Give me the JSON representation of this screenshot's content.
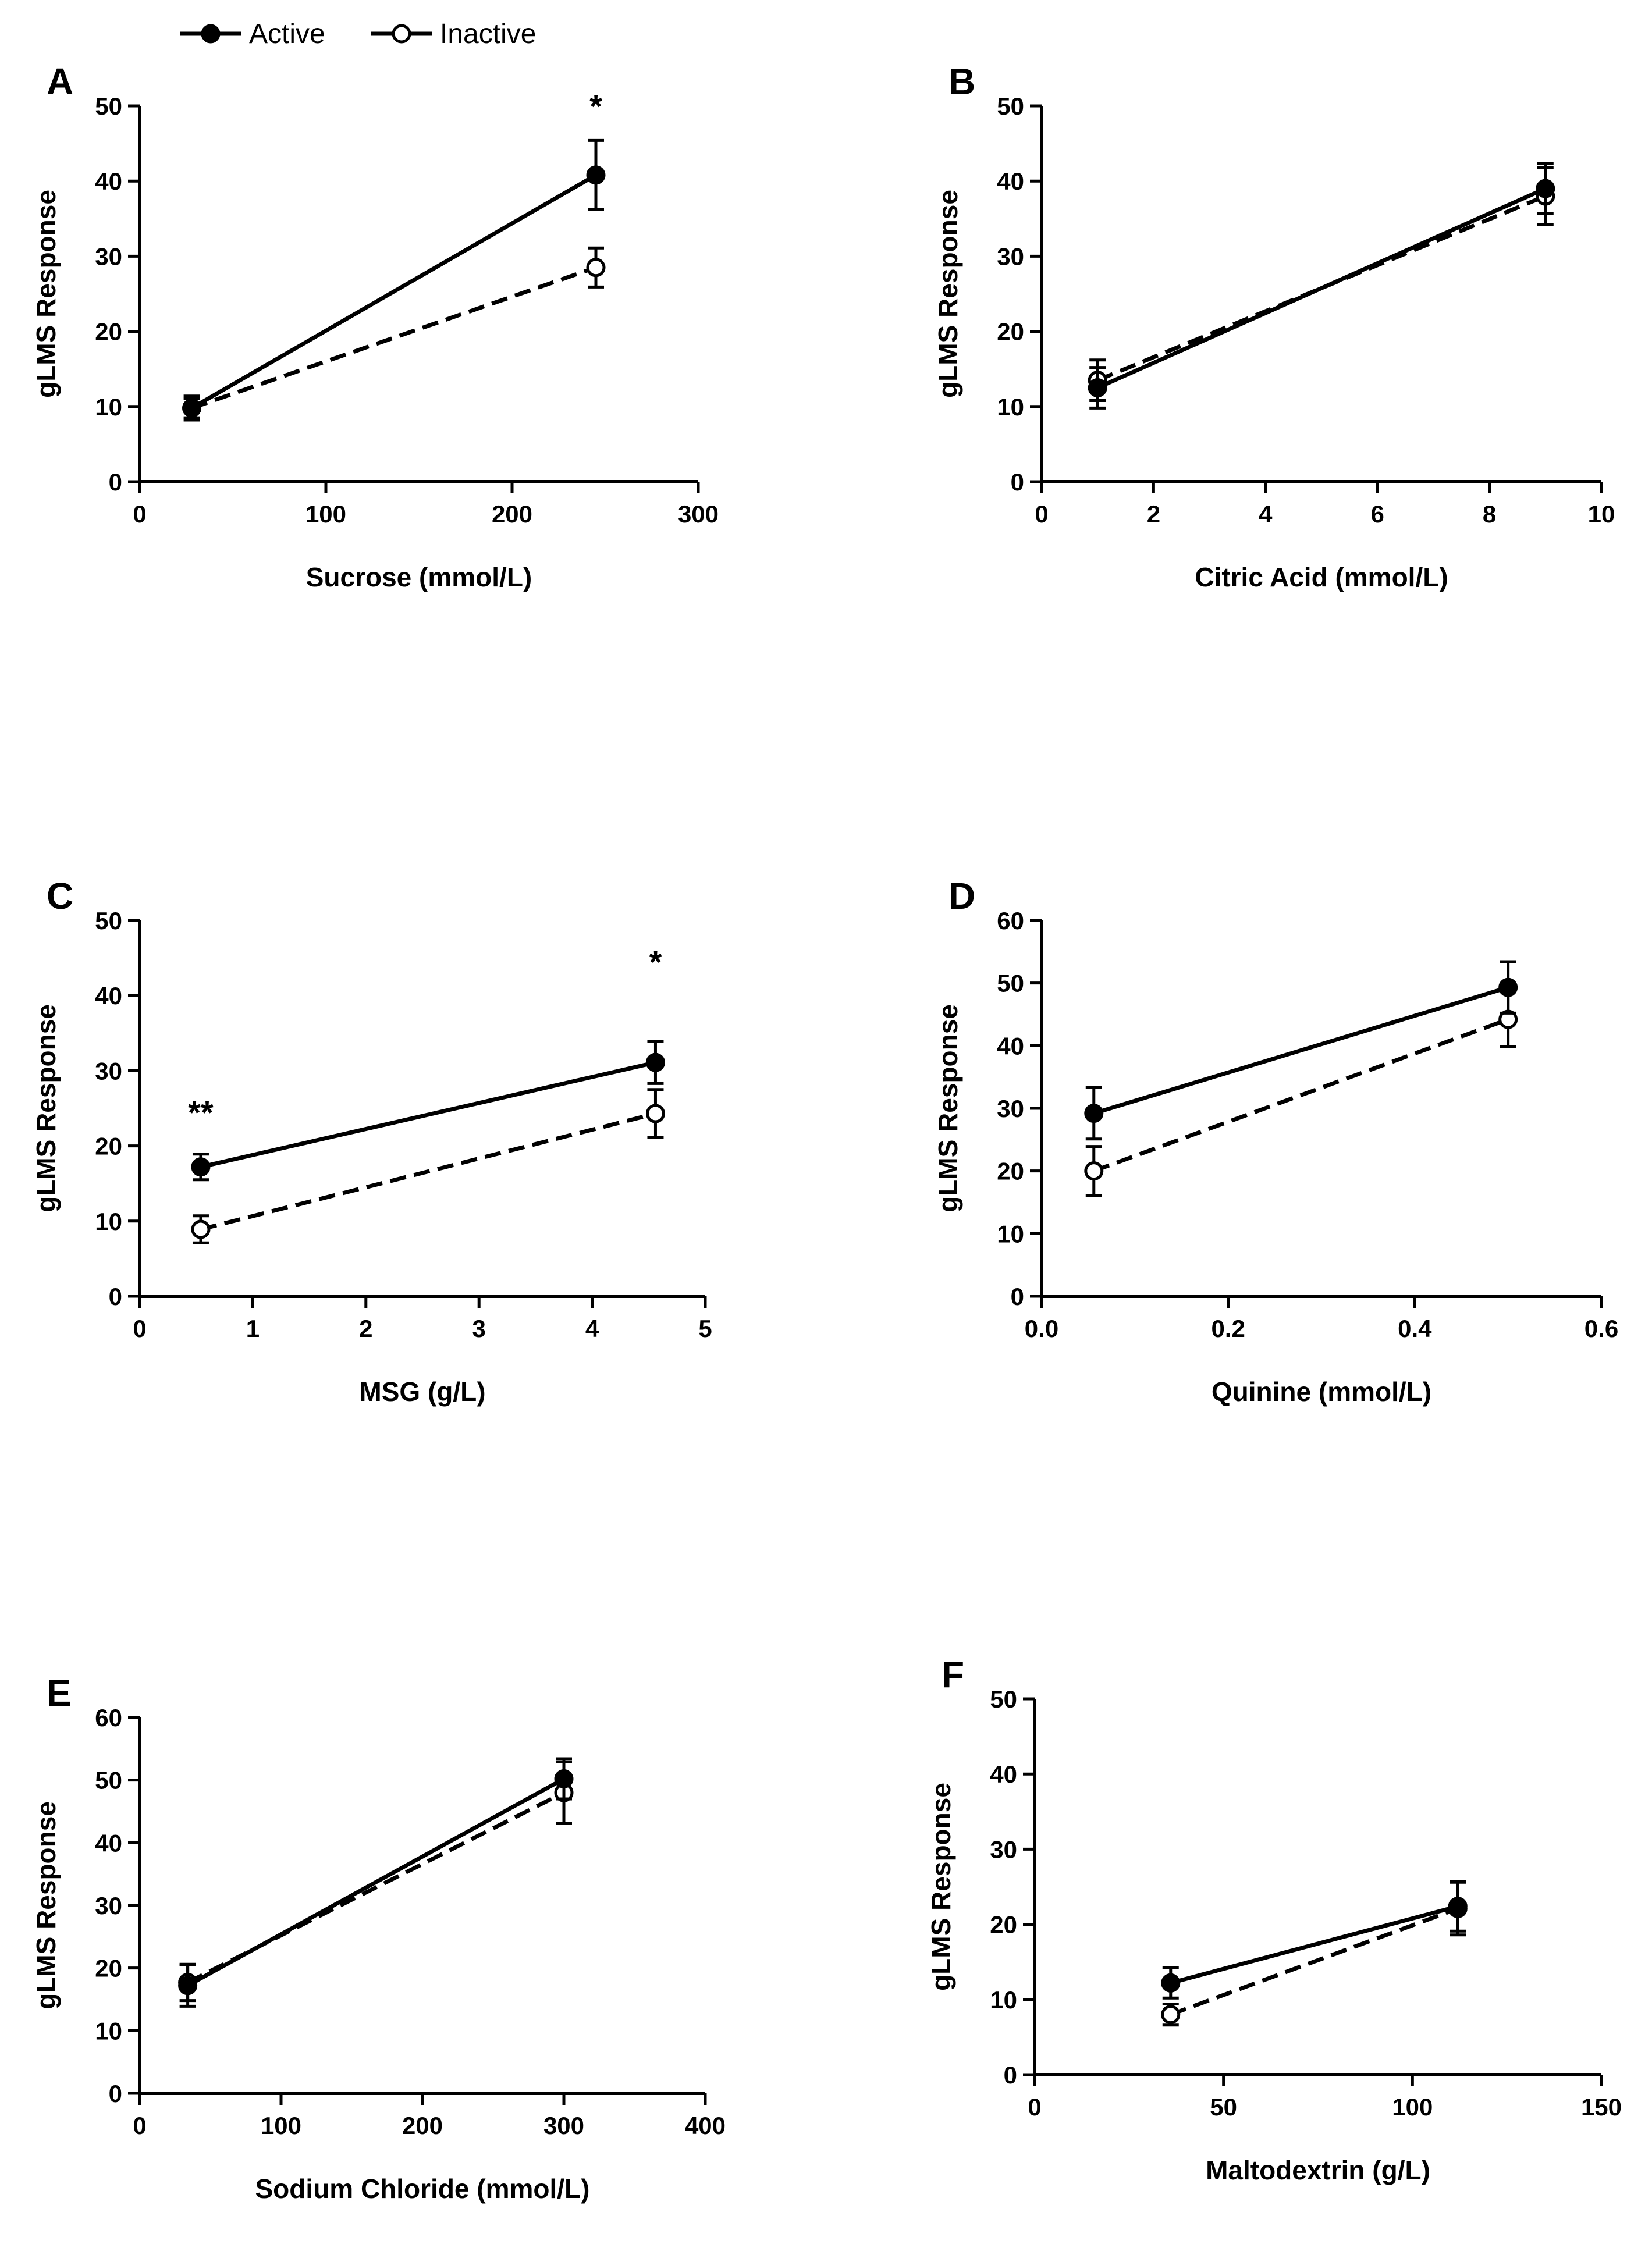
{
  "legend": {
    "items": [
      {
        "name": "Active",
        "marker": "filled-circle",
        "line": "solid"
      },
      {
        "name": "Inactive",
        "marker": "open-circle",
        "line": "dashed"
      }
    ]
  },
  "colors": {
    "ink": "#000000",
    "background": "#ffffff",
    "open_marker_fill": "#ffffff"
  },
  "chart_data": [
    {
      "panel": "A",
      "type": "line",
      "xlabel": "Sucrose (mmol/L)",
      "ylabel": "gLMS Response",
      "xlim": [
        0,
        300
      ],
      "ylim": [
        0,
        50
      ],
      "xticks": [
        0,
        100,
        200,
        300
      ],
      "yticks": [
        0,
        10,
        20,
        30,
        40,
        50
      ],
      "xtick_labels": [
        "0",
        "100",
        "200",
        "300"
      ],
      "ytick_labels": [
        "0",
        "10",
        "20",
        "30",
        "40",
        "50"
      ],
      "series": [
        {
          "name": "Active",
          "x": [
            28,
            245
          ],
          "y": [
            9.8,
            40.8
          ],
          "err": [
            1.6,
            4.6
          ]
        },
        {
          "name": "Inactive",
          "x": [
            28,
            245
          ],
          "y": [
            9.8,
            28.5
          ],
          "err": [
            1.3,
            2.6
          ]
        }
      ],
      "annotations": [
        {
          "text": "*",
          "x": 245,
          "y": 50
        }
      ]
    },
    {
      "panel": "B",
      "type": "line",
      "xlabel": "Citric Acid (mmol/L)",
      "ylabel": "gLMS Response",
      "xlim": [
        0,
        10
      ],
      "ylim": [
        0,
        50
      ],
      "xticks": [
        0,
        2,
        4,
        6,
        8,
        10
      ],
      "yticks": [
        0,
        10,
        20,
        30,
        40,
        50
      ],
      "xtick_labels": [
        "0",
        "2",
        "4",
        "6",
        "8",
        "10"
      ],
      "ytick_labels": [
        "0",
        "10",
        "20",
        "30",
        "40",
        "50"
      ],
      "series": [
        {
          "name": "Active",
          "x": [
            1,
            9
          ],
          "y": [
            12.5,
            39.0
          ],
          "err": [
            2.7,
            3.3
          ]
        },
        {
          "name": "Inactive",
          "x": [
            1,
            9
          ],
          "y": [
            13.5,
            38.0
          ],
          "err": [
            2.7,
            3.8
          ]
        }
      ],
      "annotations": []
    },
    {
      "panel": "C",
      "type": "line",
      "xlabel": "MSG (g/L)",
      "ylabel": "gLMS Response",
      "xlim": [
        0,
        5
      ],
      "ylim": [
        0,
        50
      ],
      "xticks": [
        0,
        1,
        2,
        3,
        4,
        5
      ],
      "yticks": [
        0,
        10,
        20,
        30,
        40,
        50
      ],
      "xtick_labels": [
        "0",
        "1",
        "2",
        "3",
        "4",
        "5"
      ],
      "ytick_labels": [
        "0",
        "10",
        "20",
        "30",
        "40",
        "50"
      ],
      "series": [
        {
          "name": "Active",
          "x": [
            0.54,
            4.56
          ],
          "y": [
            17.2,
            31.1
          ],
          "err": [
            1.7,
            2.8
          ]
        },
        {
          "name": "Inactive",
          "x": [
            0.54,
            4.56
          ],
          "y": [
            8.9,
            24.3
          ],
          "err": [
            1.8,
            3.2
          ]
        }
      ],
      "annotations": [
        {
          "text": "**",
          "x": 0.54,
          "y": 24.5
        },
        {
          "text": "*",
          "x": 4.56,
          "y": 44.5
        }
      ]
    },
    {
      "panel": "D",
      "type": "line",
      "xlabel": "Quinine (mmol/L)",
      "ylabel": "gLMS Response",
      "xlim": [
        0,
        0.6
      ],
      "ylim": [
        0,
        60
      ],
      "xticks": [
        0,
        0.2,
        0.4,
        0.6
      ],
      "yticks": [
        0,
        10,
        20,
        30,
        40,
        50,
        60
      ],
      "xtick_labels": [
        "0.0",
        "0.2",
        "0.4",
        "0.6"
      ],
      "ytick_labels": [
        "0",
        "10",
        "20",
        "30",
        "40",
        "50",
        "60"
      ],
      "series": [
        {
          "name": "Active",
          "x": [
            0.056,
            0.5
          ],
          "y": [
            29.2,
            49.3
          ],
          "err": [
            4.1,
            4.1
          ]
        },
        {
          "name": "Inactive",
          "x": [
            0.056,
            0.5
          ],
          "y": [
            20.0,
            44.2
          ],
          "err": [
            3.9,
            4.4
          ]
        }
      ],
      "annotations": []
    },
    {
      "panel": "E",
      "type": "line",
      "xlabel": "Sodium Chloride (mmol/L)",
      "ylabel": "gLMS Response",
      "xlim": [
        0,
        400
      ],
      "ylim": [
        0,
        60
      ],
      "xticks": [
        0,
        100,
        200,
        300,
        400
      ],
      "yticks": [
        0,
        10,
        20,
        30,
        40,
        50,
        60
      ],
      "xtick_labels": [
        "0",
        "100",
        "200",
        "300",
        "400"
      ],
      "ytick_labels": [
        "0",
        "10",
        "20",
        "30",
        "40",
        "50",
        "60"
      ],
      "series": [
        {
          "name": "Active",
          "x": [
            34,
            300
          ],
          "y": [
            17.2,
            50.2
          ],
          "err": [
            3.3,
            3.2
          ]
        },
        {
          "name": "Inactive",
          "x": [
            34,
            300
          ],
          "y": [
            17.7,
            48.0
          ],
          "err": [
            2.9,
            4.9
          ]
        }
      ],
      "annotations": []
    },
    {
      "panel": "F",
      "type": "line",
      "xlabel": "Maltodextrin (g/L)",
      "ylabel": "gLMS Response",
      "xlim": [
        0,
        150
      ],
      "ylim": [
        0,
        50
      ],
      "xticks": [
        0,
        50,
        100,
        150
      ],
      "yticks": [
        0,
        10,
        20,
        30,
        40,
        50
      ],
      "xtick_labels": [
        "0",
        "50",
        "100",
        "150"
      ],
      "ytick_labels": [
        "0",
        "10",
        "20",
        "30",
        "40",
        "50"
      ],
      "series": [
        {
          "name": "Active",
          "x": [
            36,
            112
          ],
          "y": [
            12.2,
            22.4
          ],
          "err": [
            2.0,
            3.3
          ]
        },
        {
          "name": "Inactive",
          "x": [
            36,
            112
          ],
          "y": [
            8.0,
            22.1
          ],
          "err": [
            1.4,
            3.5
          ]
        }
      ],
      "annotations": []
    }
  ]
}
